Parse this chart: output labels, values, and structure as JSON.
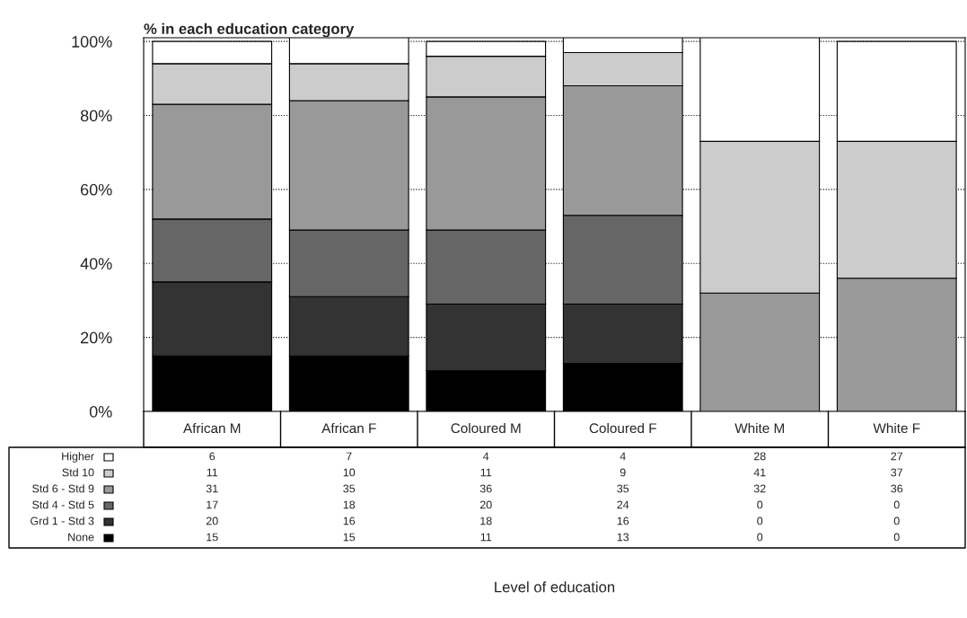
{
  "chart_data": {
    "type": "bar",
    "stacked": true,
    "title": "% in each education category",
    "annotations": [
      "Level of education"
    ],
    "categories": [
      "African M",
      "African F",
      "Coloured M",
      "Coloured F",
      "White M",
      "White F"
    ],
    "series": [
      {
        "name": "None",
        "color": "#000000",
        "values": [
          15,
          15,
          11,
          13,
          0,
          0
        ]
      },
      {
        "name": "Grd 1 - Std 3",
        "color": "#333333",
        "values": [
          20,
          16,
          18,
          16,
          0,
          0
        ]
      },
      {
        "name": "Std 4 - Std 5",
        "color": "#666666",
        "values": [
          17,
          18,
          20,
          24,
          0,
          0
        ]
      },
      {
        "name": "Std 6 - Std 9",
        "color": "#999999",
        "values": [
          31,
          35,
          36,
          35,
          32,
          36
        ]
      },
      {
        "name": "Std 10",
        "color": "#cccccc",
        "values": [
          11,
          10,
          11,
          9,
          41,
          37
        ]
      },
      {
        "name": "Higher",
        "color": "#ffffff",
        "values": [
          6,
          7,
          4,
          4,
          28,
          27
        ]
      }
    ],
    "ylim": [
      0,
      101
    ],
    "yticks": [
      {
        "value": 0,
        "label": "0%"
      },
      {
        "value": 20,
        "label": "20%"
      },
      {
        "value": 40,
        "label": "40%"
      },
      {
        "value": 60,
        "label": "60%"
      },
      {
        "value": 80,
        "label": "80%"
      },
      {
        "value": 100,
        "label": "100%"
      }
    ],
    "grid": "y",
    "legend": "bottom left",
    "data_labels": true
  }
}
